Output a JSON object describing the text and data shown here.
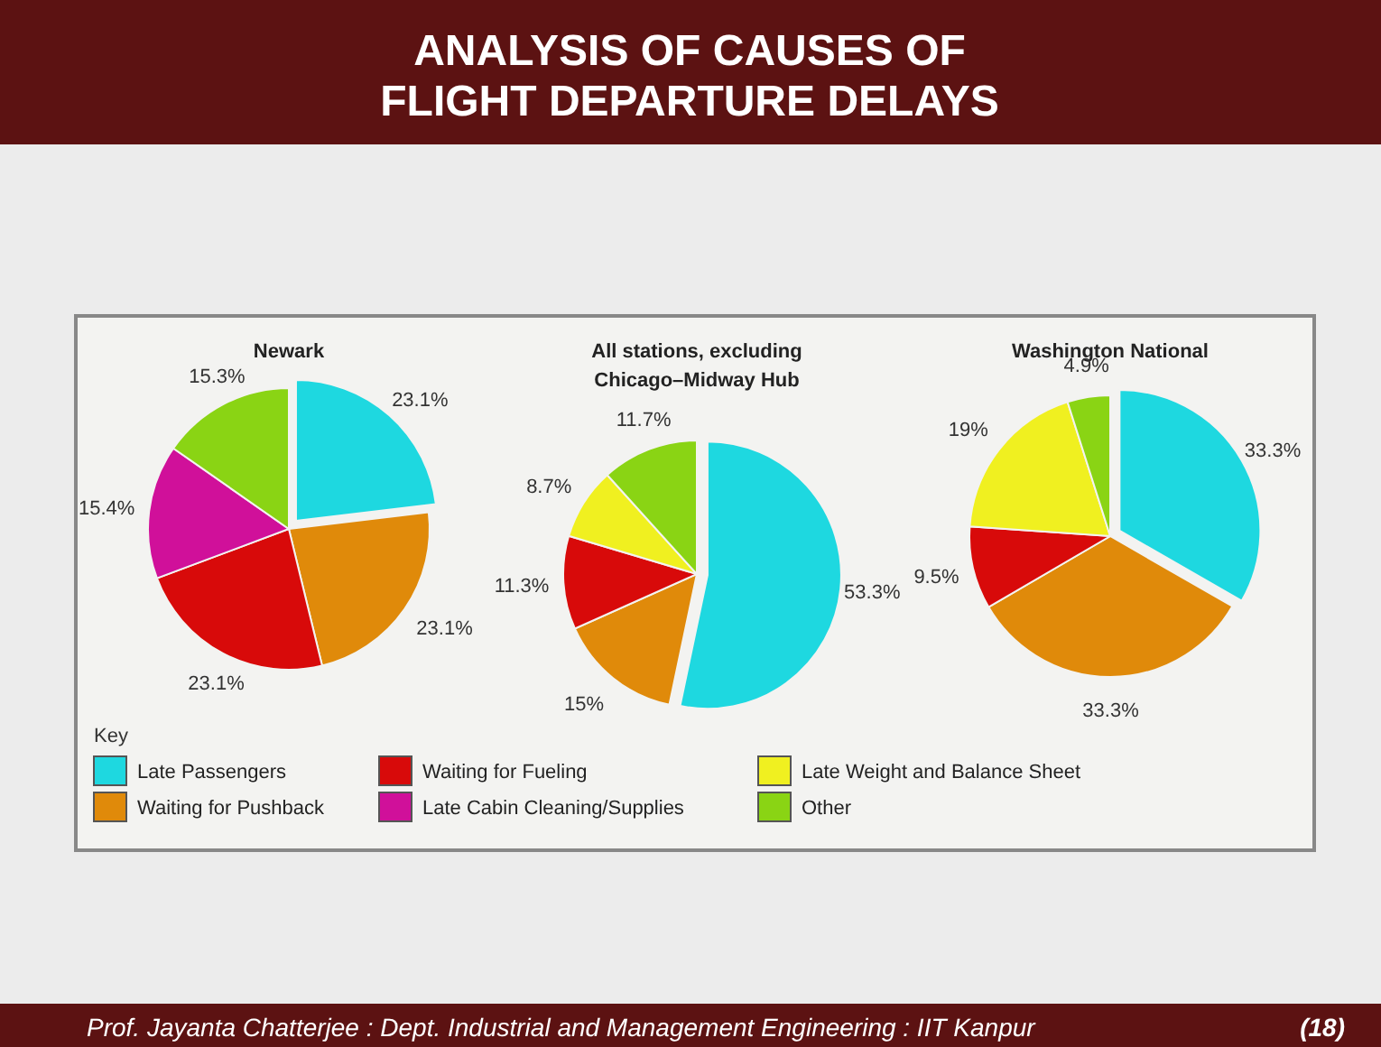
{
  "chart_data": [
    {
      "type": "other",
      "title": "ANALYSIS OF CAUSES OF\nFLIGHT DEPARTURE DELAYS",
      "annotations": [
        "Prof. Jayanta Chatterjee : Dept. Industrial and Management Engineering : IIT Kanpur",
        "(18)"
      ]
    },
    {
      "type": "pie",
      "title": "Newark",
      "categories": [
        "Late Passengers",
        "Waiting for Pushback",
        "Waiting for Fueling",
        "Late Cabin Cleaning/Supplies",
        "Late Weight and Balance Sheet",
        "Other"
      ],
      "values": [
        23.1,
        23.1,
        23.1,
        15.4,
        null,
        15.3
      ],
      "value_labels": [
        "23.1%",
        "23.1%",
        "23.1%",
        "15.4%",
        null,
        "15.3%"
      ],
      "colors": [
        "#1ed8e0",
        "#e08a0a",
        "#d80a0a",
        "#d0109a",
        "#f0f020",
        "#8ad414"
      ],
      "legend": "bottom",
      "legend_title": "Key"
    },
    {
      "type": "pie",
      "title": "All stations, excluding\nChicago–Midway Hub",
      "values": [
        53.3,
        15,
        11.3,
        8.7,
        11.7
      ],
      "value_labels": [
        "53.3%",
        "15%",
        "11.3%",
        "8.7%",
        "11.7%"
      ],
      "colors": [
        "#1ed8e0",
        "#e08a0a",
        "#d80a0a",
        "#f0f020",
        "#8ad414"
      ]
    },
    {
      "type": "pie",
      "title": "Washington National",
      "values": [
        33.3,
        33.3,
        9.5,
        19,
        4.9
      ],
      "value_labels": [
        "33.3%",
        "33.3%",
        "9.5%",
        "19%",
        "4.9%"
      ],
      "colors": [
        "#1ed8e0",
        "#e08a0a",
        "#d80a0a",
        "#f0f020",
        "#8ad414"
      ]
    }
  ]
}
